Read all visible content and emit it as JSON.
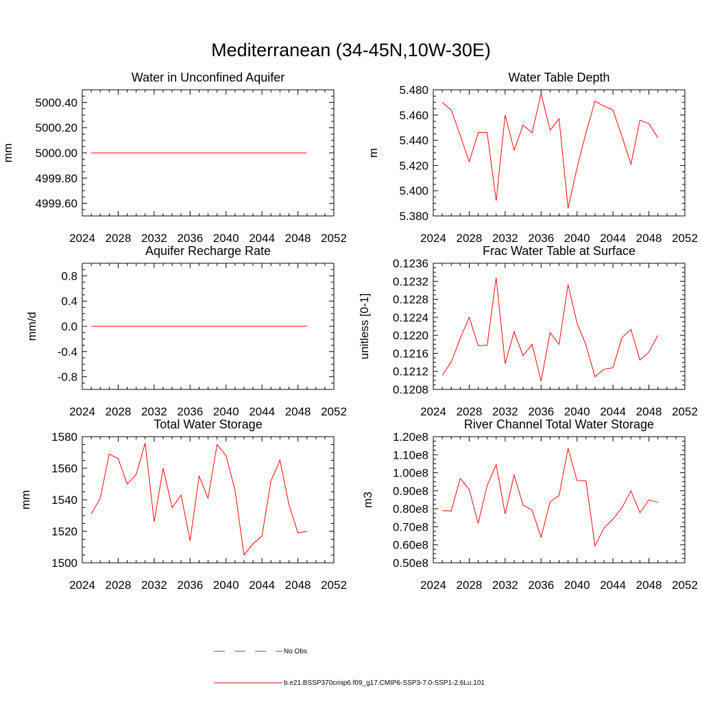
{
  "figure": {
    "title": "Mediterranean (34-45N,10W-30E)",
    "legend": [
      {
        "label": "No Obs",
        "color": "#4455aa",
        "dash": true
      },
      {
        "label": "b.e21.BSSP370cmip6.f09_g17.CMIP6-SSP3-7.0-SSP1-2.6Lu.101",
        "color": "#ff0000",
        "dash": false
      }
    ]
  },
  "chart_data": [
    {
      "type": "line",
      "title": "Water in Unconfined Aquifer",
      "ylabel": "mm",
      "xlim": [
        2024,
        2052
      ],
      "ylim": [
        4999.5,
        5000.5
      ],
      "xticks": [
        2024,
        2028,
        2032,
        2036,
        2040,
        2044,
        2048,
        2052
      ],
      "xtick_labels": [
        "2024",
        "2028",
        "2032",
        "2036",
        "2040",
        "2044",
        "2048",
        "2052"
      ],
      "yticks": [
        4999.6,
        4999.8,
        5000.0,
        5000.2,
        5000.4
      ],
      "ytick_labels": [
        "4999.60",
        "4999.80",
        "5000.00",
        "5000.20",
        "5000.40"
      ],
      "series": [
        {
          "color": "#ff0000",
          "x": [
            2025,
            2026,
            2027,
            2028,
            2029,
            2030,
            2031,
            2032,
            2033,
            2034,
            2035,
            2036,
            2037,
            2038,
            2039,
            2040,
            2041,
            2042,
            2043,
            2044,
            2045,
            2046,
            2047,
            2048,
            2049
          ],
          "y": [
            5000,
            5000,
            5000,
            5000,
            5000,
            5000,
            5000,
            5000,
            5000,
            5000,
            5000,
            5000,
            5000,
            5000,
            5000,
            5000,
            5000,
            5000,
            5000,
            5000,
            5000,
            5000,
            5000,
            5000,
            5000
          ]
        }
      ]
    },
    {
      "type": "line",
      "title": "Water Table Depth",
      "ylabel": "m",
      "xlim": [
        2024,
        2052
      ],
      "ylim": [
        5.38,
        5.48
      ],
      "xticks": [
        2024,
        2028,
        2032,
        2036,
        2040,
        2044,
        2048,
        2052
      ],
      "xtick_labels": [
        "2024",
        "2028",
        "2032",
        "2036",
        "2040",
        "2044",
        "2048",
        "2052"
      ],
      "yticks": [
        5.38,
        5.4,
        5.42,
        5.44,
        5.46,
        5.48
      ],
      "ytick_labels": [
        "5.380",
        "5.400",
        "5.420",
        "5.440",
        "5.460",
        "5.480"
      ],
      "series": [
        {
          "color": "#ff0000",
          "x": [
            2025,
            2026,
            2027,
            2028,
            2029,
            2030,
            2031,
            2032,
            2033,
            2034,
            2035,
            2036,
            2037,
            2038,
            2039,
            2040,
            2041,
            2042,
            2043,
            2044,
            2045,
            2046,
            2047,
            2048,
            2049
          ],
          "y": [
            5.47,
            5.464,
            5.444,
            5.423,
            5.446,
            5.446,
            5.392,
            5.46,
            5.432,
            5.452,
            5.446,
            5.477,
            5.448,
            5.457,
            5.386,
            5.418,
            5.446,
            5.471,
            5.467,
            5.464,
            5.443,
            5.421,
            5.456,
            5.453,
            5.442
          ]
        }
      ]
    },
    {
      "type": "line",
      "title": "Aquifer Recharge Rate",
      "ylabel": "mm/d",
      "xlim": [
        2024,
        2052
      ],
      "ylim": [
        -1.0,
        1.0
      ],
      "xticks": [
        2024,
        2028,
        2032,
        2036,
        2040,
        2044,
        2048,
        2052
      ],
      "xtick_labels": [
        "2024",
        "2028",
        "2032",
        "2036",
        "2040",
        "2044",
        "2048",
        "2052"
      ],
      "yticks": [
        -0.8,
        -0.4,
        0.0,
        0.4,
        0.8
      ],
      "ytick_labels": [
        "-0.8",
        "-0.4",
        "0.0",
        "0.4",
        "0.8"
      ],
      "series": [
        {
          "color": "#ff0000",
          "x": [
            2025,
            2026,
            2027,
            2028,
            2029,
            2030,
            2031,
            2032,
            2033,
            2034,
            2035,
            2036,
            2037,
            2038,
            2039,
            2040,
            2041,
            2042,
            2043,
            2044,
            2045,
            2046,
            2047,
            2048,
            2049
          ],
          "y": [
            0,
            0,
            0,
            0,
            0,
            0,
            0,
            0,
            0,
            0,
            0,
            0,
            0,
            0,
            0,
            0,
            0,
            0,
            0,
            0,
            0,
            0,
            0,
            0,
            0
          ]
        }
      ]
    },
    {
      "type": "line",
      "title": "Frac Water Table at Surface",
      "ylabel": "unitless [0-1]",
      "xlim": [
        2024,
        2052
      ],
      "ylim": [
        0.1208,
        0.1236
      ],
      "xticks": [
        2024,
        2028,
        2032,
        2036,
        2040,
        2044,
        2048,
        2052
      ],
      "xtick_labels": [
        "2024",
        "2028",
        "2032",
        "2036",
        "2040",
        "2044",
        "2048",
        "2052"
      ],
      "yticks": [
        0.1208,
        0.1212,
        0.1216,
        0.122,
        0.1224,
        0.1228,
        0.1232,
        0.1236
      ],
      "ytick_labels": [
        "0.1208",
        "0.1212",
        "0.1216",
        "0.1220",
        "0.1224",
        "0.1228",
        "0.1232",
        "0.1236"
      ],
      "series": [
        {
          "color": "#ff0000",
          "x": [
            2025,
            2026,
            2027,
            2028,
            2029,
            2030,
            2031,
            2032,
            2033,
            2034,
            2035,
            2036,
            2037,
            2038,
            2039,
            2040,
            2041,
            2042,
            2043,
            2044,
            2045,
            2046,
            2047,
            2048,
            2049
          ],
          "y": [
            0.12111,
            0.12141,
            0.12193,
            0.1224,
            0.12177,
            0.12178,
            0.12328,
            0.12137,
            0.12208,
            0.12155,
            0.1218,
            0.12098,
            0.12206,
            0.1218,
            0.12313,
            0.12227,
            0.12178,
            0.12108,
            0.12125,
            0.12128,
            0.12195,
            0.12213,
            0.12145,
            0.12163,
            0.122
          ]
        }
      ]
    },
    {
      "type": "line",
      "title": "Total Water Storage",
      "ylabel": "mm",
      "xlim": [
        2024,
        2052
      ],
      "ylim": [
        1500,
        1580
      ],
      "xticks": [
        2024,
        2028,
        2032,
        2036,
        2040,
        2044,
        2048,
        2052
      ],
      "xtick_labels": [
        "2024",
        "2028",
        "2032",
        "2036",
        "2040",
        "2044",
        "2048",
        "2052"
      ],
      "yticks": [
        1500,
        1520,
        1540,
        1560,
        1580
      ],
      "ytick_labels": [
        "1500",
        "1520",
        "1540",
        "1560",
        "1580"
      ],
      "series": [
        {
          "color": "#ff0000",
          "x": [
            2025,
            2026,
            2027,
            2028,
            2029,
            2030,
            2031,
            2032,
            2033,
            2034,
            2035,
            2036,
            2037,
            2038,
            2039,
            2040,
            2041,
            2042,
            2043,
            2044,
            2045,
            2046,
            2047,
            2048,
            2049
          ],
          "y": [
            1531,
            1541,
            1569,
            1566,
            1550,
            1556,
            1576,
            1526,
            1560,
            1535,
            1543,
            1514,
            1555,
            1541,
            1575,
            1568,
            1546,
            1505,
            1512,
            1517,
            1552,
            1565,
            1537,
            1519,
            1520
          ]
        }
      ]
    },
    {
      "type": "line",
      "title": "River Channel Total Water Storage",
      "ylabel": "m3",
      "xlim": [
        2024,
        2052
      ],
      "ylim": [
        50000000,
        120000000
      ],
      "xticks": [
        2024,
        2028,
        2032,
        2036,
        2040,
        2044,
        2048,
        2052
      ],
      "xtick_labels": [
        "2024",
        "2028",
        "2032",
        "2036",
        "2040",
        "2044",
        "2048",
        "2052"
      ],
      "yticks": [
        50000000,
        60000000,
        70000000,
        80000000,
        90000000,
        100000000,
        110000000,
        120000000
      ],
      "ytick_labels": [
        "0.50e8",
        "0.60e8",
        "0.70e8",
        "0.80e8",
        "0.90e8",
        "1.00e8",
        "1.10e8",
        "1.20e8"
      ],
      "series": [
        {
          "color": "#ff0000",
          "x": [
            2025,
            2026,
            2027,
            2028,
            2029,
            2030,
            2031,
            2032,
            2033,
            2034,
            2035,
            2036,
            2037,
            2038,
            2039,
            2040,
            2041,
            2042,
            2043,
            2044,
            2045,
            2046,
            2047,
            2048,
            2049
          ],
          "y": [
            79000000,
            78800000,
            96800000,
            90700000,
            71900000,
            92900000,
            104500000,
            77200000,
            98700000,
            82000000,
            79300000,
            64200000,
            83900000,
            87300000,
            113600000,
            95600000,
            95500000,
            59400000,
            69300000,
            74300000,
            80600000,
            89900000,
            77800000,
            84900000,
            83600000
          ]
        }
      ]
    }
  ]
}
